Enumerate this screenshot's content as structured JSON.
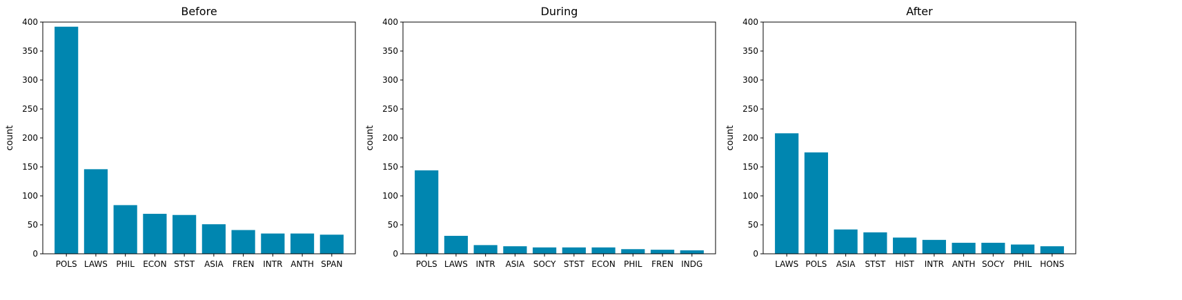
{
  "chart_data": [
    {
      "type": "bar",
      "title": "Before",
      "ylabel": "count",
      "xlabel": "",
      "ylim": [
        0,
        400
      ],
      "yticks": [
        0,
        50,
        100,
        150,
        200,
        250,
        300,
        350,
        400
      ],
      "categories": [
        "POLS",
        "LAWS",
        "PHIL",
        "ECON",
        "STST",
        "ASIA",
        "FREN",
        "INTR",
        "ANTH",
        "SPAN"
      ],
      "values": [
        392,
        146,
        84,
        69,
        67,
        51,
        41,
        35,
        35,
        33
      ],
      "color": "#0086b0",
      "grid": false
    },
    {
      "type": "bar",
      "title": "During",
      "ylabel": "count",
      "xlabel": "",
      "ylim": [
        0,
        400
      ],
      "yticks": [
        0,
        50,
        100,
        150,
        200,
        250,
        300,
        350,
        400
      ],
      "categories": [
        "POLS",
        "LAWS",
        "INTR",
        "ASIA",
        "SOCY",
        "STST",
        "ECON",
        "PHIL",
        "FREN",
        "INDG"
      ],
      "values": [
        144,
        31,
        15,
        13,
        11,
        11,
        11,
        8,
        7,
        6
      ],
      "color": "#0086b0",
      "grid": false
    },
    {
      "type": "bar",
      "title": "After",
      "ylabel": "count",
      "xlabel": "",
      "ylim": [
        0,
        400
      ],
      "yticks": [
        0,
        50,
        100,
        150,
        200,
        250,
        300,
        350,
        400
      ],
      "categories": [
        "LAWS",
        "POLS",
        "ASIA",
        "STST",
        "HIST",
        "INTR",
        "ANTH",
        "SOCY",
        "PHIL",
        "HONS"
      ],
      "values": [
        208,
        175,
        42,
        37,
        28,
        24,
        19,
        19,
        16,
        13
      ],
      "color": "#0086b0",
      "grid": false
    }
  ]
}
